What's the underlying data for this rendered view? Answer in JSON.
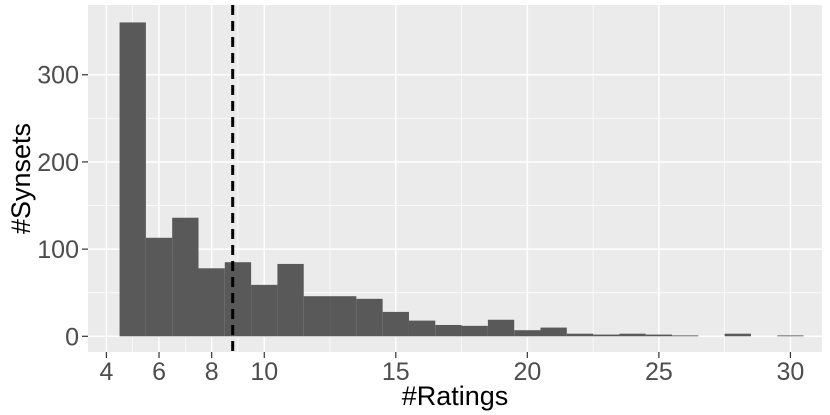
{
  "chart_data": {
    "type": "bar",
    "xlabel": "#Ratings",
    "ylabel": "#Synsets",
    "x_ticks": [
      4,
      6,
      8,
      10,
      15,
      20,
      25,
      30
    ],
    "y_ticks": [
      0,
      100,
      200,
      300
    ],
    "xlim": [
      3.3,
      31.2
    ],
    "ylim": [
      -18,
      380
    ],
    "bin_width": 1,
    "bins": [
      {
        "start": 4.5,
        "count": 360
      },
      {
        "start": 5.5,
        "count": 113
      },
      {
        "start": 6.5,
        "count": 136
      },
      {
        "start": 7.5,
        "count": 78
      },
      {
        "start": 8.5,
        "count": 85
      },
      {
        "start": 9.5,
        "count": 59
      },
      {
        "start": 10.5,
        "count": 83
      },
      {
        "start": 11.5,
        "count": 46
      },
      {
        "start": 12.5,
        "count": 46
      },
      {
        "start": 13.5,
        "count": 43
      },
      {
        "start": 14.5,
        "count": 28
      },
      {
        "start": 15.5,
        "count": 18
      },
      {
        "start": 16.5,
        "count": 13
      },
      {
        "start": 17.5,
        "count": 12
      },
      {
        "start": 18.5,
        "count": 19
      },
      {
        "start": 19.5,
        "count": 7
      },
      {
        "start": 20.5,
        "count": 10
      },
      {
        "start": 21.5,
        "count": 3
      },
      {
        "start": 22.5,
        "count": 2
      },
      {
        "start": 23.5,
        "count": 3
      },
      {
        "start": 24.5,
        "count": 2
      },
      {
        "start": 25.5,
        "count": 1
      },
      {
        "start": 26.5,
        "count": 0
      },
      {
        "start": 27.5,
        "count": 3
      },
      {
        "start": 28.5,
        "count": 0
      },
      {
        "start": 29.5,
        "count": 1
      }
    ],
    "reference_line": {
      "x": 8.8,
      "style": "dashed"
    },
    "grid": true,
    "colors": {
      "panel": "#ebebeb",
      "grid": "#ffffff",
      "bar": "#595959",
      "reference_line": "#000000"
    }
  }
}
